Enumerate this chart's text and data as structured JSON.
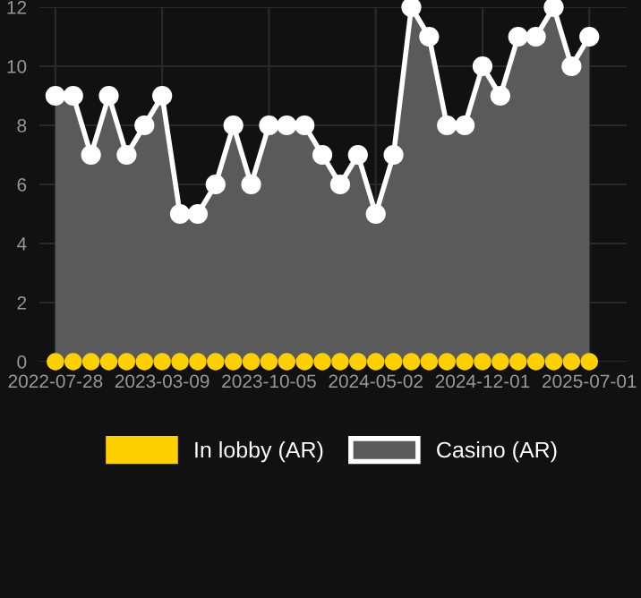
{
  "chart_data": {
    "type": "area",
    "categories": [
      "2022-07-28",
      null,
      null,
      null,
      null,
      null,
      "2023-03-09",
      null,
      null,
      null,
      null,
      null,
      "2023-10-05",
      null,
      null,
      null,
      null,
      null,
      "2024-05-02",
      null,
      null,
      null,
      null,
      null,
      "2024-12-01",
      null,
      null,
      null,
      null,
      null,
      "2025-07-01"
    ],
    "series": [
      {
        "name": "Casino (AR)",
        "color": "#ffffff",
        "values": [
          9,
          9,
          7,
          9,
          7,
          8,
          9,
          5,
          5,
          6,
          8,
          6,
          8,
          8,
          8,
          7,
          6,
          7,
          5,
          7,
          12,
          11,
          8,
          8,
          10,
          9,
          11,
          11,
          12,
          10,
          11
        ]
      },
      {
        "name": "In lobby (AR)",
        "type": "scatter",
        "color": "#ffd000",
        "values": [
          0,
          0,
          0,
          0,
          0,
          0,
          0,
          0,
          0,
          0,
          0,
          0,
          0,
          0,
          0,
          0,
          0,
          0,
          0,
          0,
          0,
          0,
          0,
          0,
          0,
          0,
          0,
          0,
          0,
          0,
          0
        ]
      }
    ],
    "ylim": [
      0,
      12
    ],
    "yticks": [
      0,
      2,
      4,
      6,
      8,
      10,
      12
    ],
    "grid": true,
    "legend": "bottom",
    "marker": "circle",
    "line_style": "solid"
  }
}
